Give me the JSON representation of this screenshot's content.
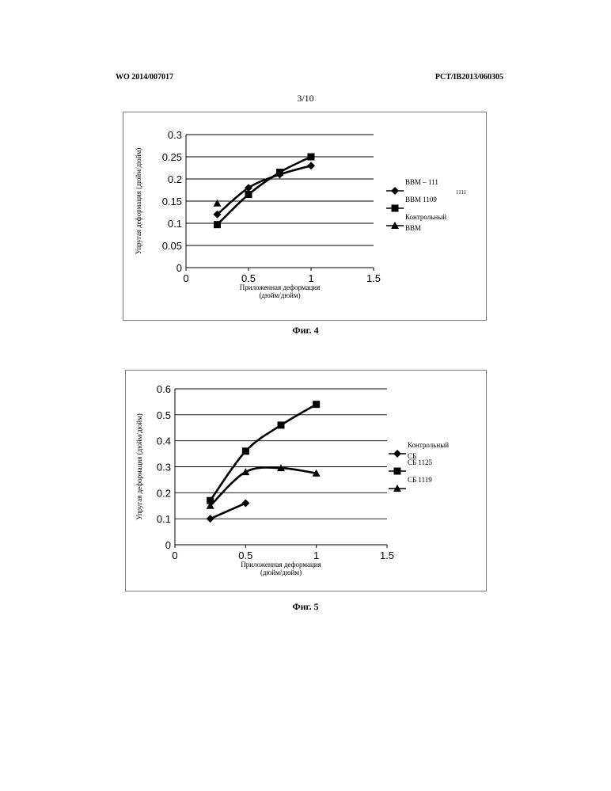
{
  "header": {
    "left": "WO 2014/007017",
    "right": "PCT/IB2013/060305",
    "page": "3/10"
  },
  "chart_data": [
    {
      "type": "line",
      "caption": "Фиг. 4",
      "xlabel": "Приложенная деформация (дюйм/дюйм)",
      "ylabel": "Упругая деформация (дюйм/дюйм)",
      "xlim": [
        0,
        1.5
      ],
      "ylim": [
        0,
        0.3
      ],
      "x_ticks": [
        "0",
        "0.5",
        "1",
        "1.5"
      ],
      "y_ticks": [
        "0",
        "0.05",
        "0.1",
        "0.15",
        "0.2",
        "0.25",
        "0.3"
      ],
      "grid": "horizontal",
      "legend_position": "right",
      "legend_extra_text": "1111",
      "series": [
        {
          "name": "BBM – 111",
          "marker": "diamond",
          "x": [
            0.25,
            0.5,
            0.75,
            1.0
          ],
          "y": [
            0.12,
            0.18,
            0.21,
            0.23
          ]
        },
        {
          "name": "BBM 1109",
          "marker": "square",
          "x": [
            0.25,
            0.5,
            0.75,
            1.0
          ],
          "y": [
            0.097,
            0.165,
            0.215,
            0.25
          ]
        },
        {
          "name": "Контрольный BBM",
          "marker": "triangle",
          "x": [
            0.25
          ],
          "y": [
            0.145
          ]
        }
      ]
    },
    {
      "type": "line",
      "caption": "Фиг. 5",
      "xlabel": "Приложенная деформация (дюйм/дюйм)",
      "ylabel": "Упругая деформация (дюйм/дюйм)",
      "xlim": [
        0,
        1.5
      ],
      "ylim": [
        0,
        0.6
      ],
      "x_ticks": [
        "0",
        "0.5",
        "1",
        "1.5"
      ],
      "y_ticks": [
        "0",
        "0.1",
        "0.2",
        "0.3",
        "0.4",
        "0.5",
        "0.6"
      ],
      "grid": "horizontal",
      "legend_position": "right",
      "series": [
        {
          "name": "Контрольный СБ",
          "marker": "diamond",
          "x": [
            0.25,
            0.5
          ],
          "y": [
            0.1,
            0.16
          ]
        },
        {
          "name": "СБ 1125",
          "marker": "square",
          "x": [
            0.25,
            0.5,
            0.75,
            1.0
          ],
          "y": [
            0.17,
            0.36,
            0.46,
            0.54
          ]
        },
        {
          "name": "СБ 1119",
          "marker": "triangle",
          "x": [
            0.25,
            0.5,
            0.75,
            1.0
          ],
          "y": [
            0.15,
            0.28,
            0.295,
            0.275
          ]
        }
      ]
    }
  ]
}
